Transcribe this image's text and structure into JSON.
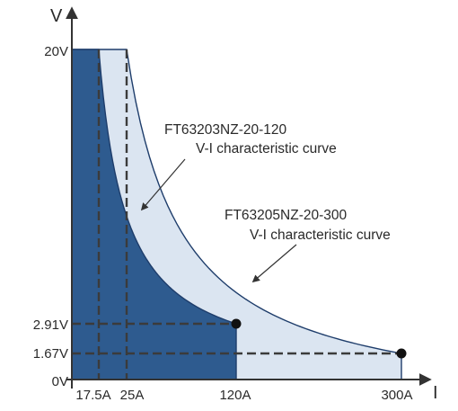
{
  "chart_data": {
    "type": "area",
    "x_axis_label": "I",
    "y_axis_label": "V",
    "xlim": [
      0,
      300
    ],
    "ylim": [
      0,
      20
    ],
    "x_tick_labels": [
      {
        "value": 17.5,
        "label": "17.5A"
      },
      {
        "value": 25,
        "label": "25A"
      },
      {
        "value": 120,
        "label": "120A"
      },
      {
        "value": 300,
        "label": "300A"
      }
    ],
    "y_tick_labels": [
      {
        "value": 20,
        "label": "20V"
      },
      {
        "value": 2.91,
        "label": "2.91V"
      },
      {
        "value": 1.67,
        "label": "1.67V"
      },
      {
        "value": 0,
        "label": "0V"
      }
    ],
    "series": [
      {
        "name": "FT63205NZ-20-300 V-I characteristic curve",
        "color": "#dbe5f1",
        "edge_color": "#1e3d6b",
        "max_voltage": 20,
        "max_current": 300,
        "corner_voltage": 1.67,
        "knee_current": 25
      },
      {
        "name": "FT63203NZ-20-120 V-I characteristic curve",
        "color": "#2e5b8f",
        "edge_color": "#1e3d6b",
        "max_voltage": 20,
        "max_current": 120,
        "corner_voltage": 2.91,
        "knee_current": 17.5
      }
    ],
    "annotations": [
      {
        "lines": [
          "FT63203NZ-20-120",
          "V-I characteristic curve"
        ]
      },
      {
        "lines": [
          "FT63205NZ-20-300",
          "V-I characteristic curve"
        ]
      }
    ],
    "marked_points": [
      {
        "current": 120,
        "voltage": 2.91
      },
      {
        "current": 300,
        "voltage": 1.67
      }
    ],
    "grid": false,
    "legend": "none"
  }
}
